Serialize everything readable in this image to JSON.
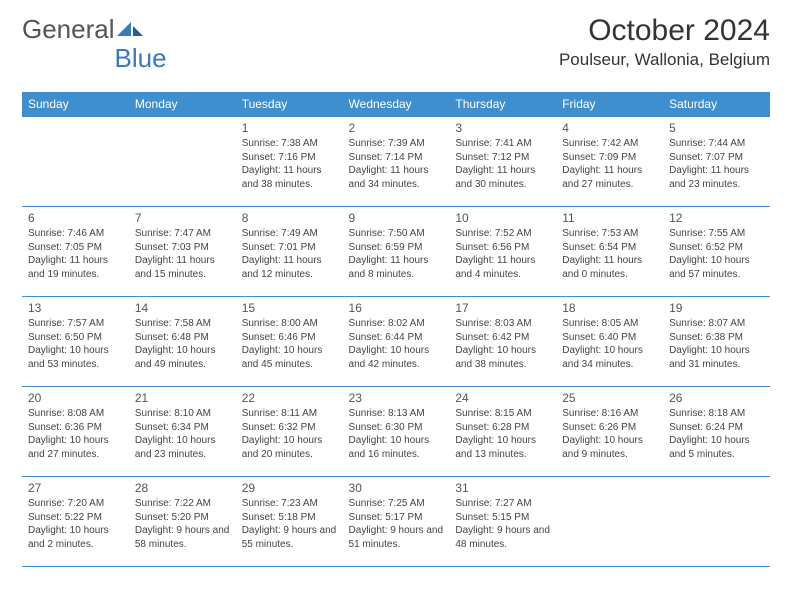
{
  "brand": {
    "part1": "General",
    "part2": "Blue"
  },
  "title": "October 2024",
  "location": "Poulseur, Wallonia, Belgium",
  "colors": {
    "header_blue": "#3f8fce",
    "logo_blue": "#3a7ab5",
    "border_blue": "#3f8fce",
    "text": "#444444",
    "background": "#ffffff"
  },
  "dayHeaders": [
    "Sunday",
    "Monday",
    "Tuesday",
    "Wednesday",
    "Thursday",
    "Friday",
    "Saturday"
  ],
  "weeks": [
    [
      null,
      null,
      {
        "d": "1",
        "sr": "7:38 AM",
        "ss": "7:16 PM",
        "dl": "11 hours and 38 minutes."
      },
      {
        "d": "2",
        "sr": "7:39 AM",
        "ss": "7:14 PM",
        "dl": "11 hours and 34 minutes."
      },
      {
        "d": "3",
        "sr": "7:41 AM",
        "ss": "7:12 PM",
        "dl": "11 hours and 30 minutes."
      },
      {
        "d": "4",
        "sr": "7:42 AM",
        "ss": "7:09 PM",
        "dl": "11 hours and 27 minutes."
      },
      {
        "d": "5",
        "sr": "7:44 AM",
        "ss": "7:07 PM",
        "dl": "11 hours and 23 minutes."
      }
    ],
    [
      {
        "d": "6",
        "sr": "7:46 AM",
        "ss": "7:05 PM",
        "dl": "11 hours and 19 minutes."
      },
      {
        "d": "7",
        "sr": "7:47 AM",
        "ss": "7:03 PM",
        "dl": "11 hours and 15 minutes."
      },
      {
        "d": "8",
        "sr": "7:49 AM",
        "ss": "7:01 PM",
        "dl": "11 hours and 12 minutes."
      },
      {
        "d": "9",
        "sr": "7:50 AM",
        "ss": "6:59 PM",
        "dl": "11 hours and 8 minutes."
      },
      {
        "d": "10",
        "sr": "7:52 AM",
        "ss": "6:56 PM",
        "dl": "11 hours and 4 minutes."
      },
      {
        "d": "11",
        "sr": "7:53 AM",
        "ss": "6:54 PM",
        "dl": "11 hours and 0 minutes."
      },
      {
        "d": "12",
        "sr": "7:55 AM",
        "ss": "6:52 PM",
        "dl": "10 hours and 57 minutes."
      }
    ],
    [
      {
        "d": "13",
        "sr": "7:57 AM",
        "ss": "6:50 PM",
        "dl": "10 hours and 53 minutes."
      },
      {
        "d": "14",
        "sr": "7:58 AM",
        "ss": "6:48 PM",
        "dl": "10 hours and 49 minutes."
      },
      {
        "d": "15",
        "sr": "8:00 AM",
        "ss": "6:46 PM",
        "dl": "10 hours and 45 minutes."
      },
      {
        "d": "16",
        "sr": "8:02 AM",
        "ss": "6:44 PM",
        "dl": "10 hours and 42 minutes."
      },
      {
        "d": "17",
        "sr": "8:03 AM",
        "ss": "6:42 PM",
        "dl": "10 hours and 38 minutes."
      },
      {
        "d": "18",
        "sr": "8:05 AM",
        "ss": "6:40 PM",
        "dl": "10 hours and 34 minutes."
      },
      {
        "d": "19",
        "sr": "8:07 AM",
        "ss": "6:38 PM",
        "dl": "10 hours and 31 minutes."
      }
    ],
    [
      {
        "d": "20",
        "sr": "8:08 AM",
        "ss": "6:36 PM",
        "dl": "10 hours and 27 minutes."
      },
      {
        "d": "21",
        "sr": "8:10 AM",
        "ss": "6:34 PM",
        "dl": "10 hours and 23 minutes."
      },
      {
        "d": "22",
        "sr": "8:11 AM",
        "ss": "6:32 PM",
        "dl": "10 hours and 20 minutes."
      },
      {
        "d": "23",
        "sr": "8:13 AM",
        "ss": "6:30 PM",
        "dl": "10 hours and 16 minutes."
      },
      {
        "d": "24",
        "sr": "8:15 AM",
        "ss": "6:28 PM",
        "dl": "10 hours and 13 minutes."
      },
      {
        "d": "25",
        "sr": "8:16 AM",
        "ss": "6:26 PM",
        "dl": "10 hours and 9 minutes."
      },
      {
        "d": "26",
        "sr": "8:18 AM",
        "ss": "6:24 PM",
        "dl": "10 hours and 5 minutes."
      }
    ],
    [
      {
        "d": "27",
        "sr": "7:20 AM",
        "ss": "5:22 PM",
        "dl": "10 hours and 2 minutes."
      },
      {
        "d": "28",
        "sr": "7:22 AM",
        "ss": "5:20 PM",
        "dl": "9 hours and 58 minutes."
      },
      {
        "d": "29",
        "sr": "7:23 AM",
        "ss": "5:18 PM",
        "dl": "9 hours and 55 minutes."
      },
      {
        "d": "30",
        "sr": "7:25 AM",
        "ss": "5:17 PM",
        "dl": "9 hours and 51 minutes."
      },
      {
        "d": "31",
        "sr": "7:27 AM",
        "ss": "5:15 PM",
        "dl": "9 hours and 48 minutes."
      },
      null,
      null
    ]
  ],
  "labels": {
    "sunrise": "Sunrise: ",
    "sunset": "Sunset: ",
    "daylight": "Daylight: "
  }
}
